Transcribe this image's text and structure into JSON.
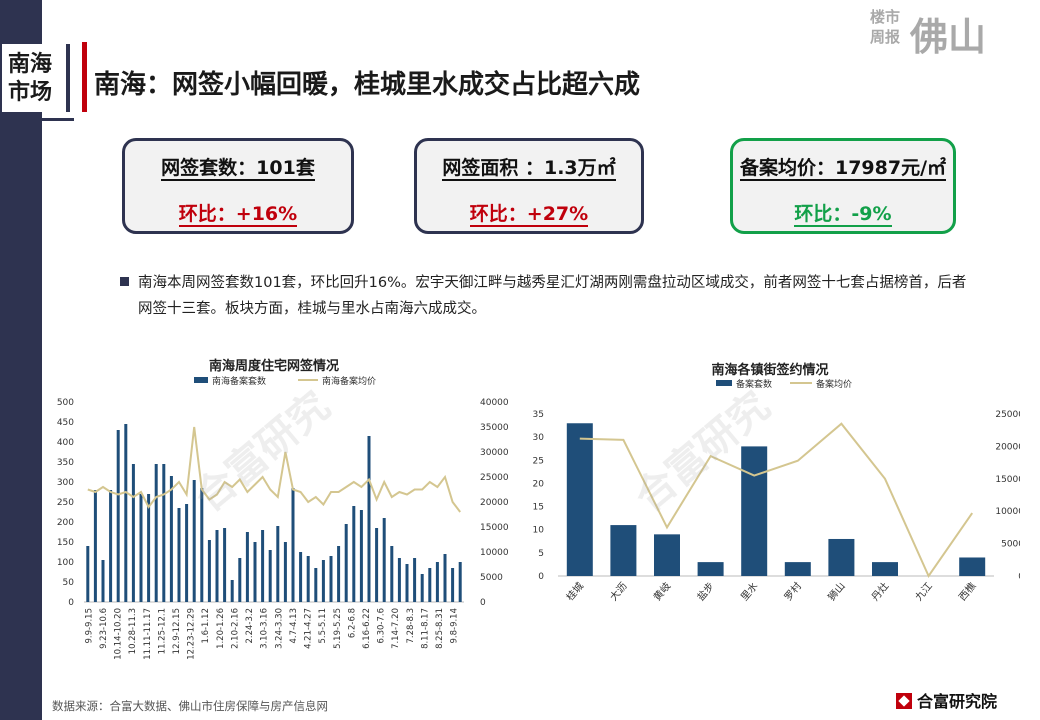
{
  "header": {
    "section_tag_line1": "南海",
    "section_tag_line2": "市场",
    "title": "南海：网签小幅回暖，桂城里水成交占比超六成",
    "brand_small_1": "楼市",
    "brand_small_2": "周报",
    "brand_big": "佛山"
  },
  "kpis": [
    {
      "label": "网签套数：101套",
      "value": "环比：+16%",
      "tone": "up"
    },
    {
      "label": "网签面积 ：1.3万㎡",
      "value": "环比：+27%",
      "tone": "up"
    },
    {
      "label": "备案均价：17987元/㎡",
      "value": "环比：-9%",
      "tone": "down"
    }
  ],
  "paragraph": "南海本周网签套数101套，环比回升16%。宏宇天御江畔与越秀星汇灯湖两刚需盘拉动区域成交，前者网签十七套占据榜首，后者网签十三套。板块方面，桂城与里水占南海六成成交。",
  "watermark": "合富研究",
  "colors": {
    "bar": "#1f4e79",
    "line": "#d4c690",
    "accent_red": "#c0000c",
    "accent_green": "#12a049"
  },
  "chart_data": [
    {
      "type": "bar+line",
      "title": "南海周度住宅网签情况",
      "legend": [
        "南海备案套数",
        "南海备案均价"
      ],
      "x_tick_labels": [
        "9.9-9.15",
        "9.23-10.6",
        "10.14-10.20",
        "10.28-11.3",
        "11.11-11.17",
        "11.25-12.1",
        "12.9-12.15",
        "12.23-12.29",
        "1.6-1.12",
        "1.20-1.26",
        "2.10-2.16",
        "2.24-3.2",
        "3.10-3.16",
        "3.24-3.30",
        "4.7-4.13",
        "4.21-4.27",
        "5.5-5.11",
        "5.19-5.25",
        "6.2-6.8",
        "6.16-6.22",
        "6.30-7.6",
        "7.14-7.20",
        "7.28-8.3",
        "8.11-8.17",
        "8.25-8.31",
        "9.8-9.14"
      ],
      "y_left": {
        "ylim": [
          0,
          500
        ],
        "ticks": [
          0,
          50,
          100,
          150,
          200,
          250,
          300,
          350,
          400,
          450,
          500
        ]
      },
      "y_right": {
        "ylim": [
          0,
          40000
        ],
        "ticks": [
          0,
          5000,
          10000,
          15000,
          20000,
          25000,
          30000,
          35000,
          40000
        ]
      },
      "series": [
        {
          "name": "南海备案套数",
          "kind": "bar",
          "values": [
            140,
            280,
            105,
            280,
            430,
            445,
            345,
            270,
            270,
            345,
            345,
            315,
            235,
            245,
            305,
            285,
            155,
            180,
            185,
            55,
            110,
            175,
            150,
            180,
            130,
            190,
            150,
            285,
            125,
            115,
            85,
            105,
            115,
            140,
            195,
            240,
            230,
            415,
            185,
            210,
            140,
            110,
            95,
            110,
            70,
            85,
            100,
            120,
            85,
            100
          ]
        },
        {
          "name": "南海备案均价",
          "kind": "line",
          "values": [
            22500,
            22000,
            23000,
            22000,
            21500,
            22000,
            21000,
            22000,
            19000,
            21000,
            21500,
            22500,
            24000,
            21500,
            35000,
            22500,
            20500,
            21500,
            24000,
            23000,
            24500,
            22000,
            23500,
            25000,
            22500,
            21000,
            30000,
            22500,
            22000,
            20000,
            21000,
            19500,
            22000,
            22000,
            23000,
            24000,
            23000,
            24500,
            20500,
            24000,
            21000,
            22000,
            21500,
            22500,
            22500,
            24000,
            23000,
            25000,
            20000,
            18000
          ]
        }
      ]
    },
    {
      "type": "bar+line",
      "title": "南海各镇街签约情况",
      "legend": [
        "备案套数",
        "备案均价"
      ],
      "categories": [
        "桂城",
        "大沥",
        "黄岐",
        "盐步",
        "里水",
        "罗村",
        "狮山",
        "丹灶",
        "九江",
        "西樵"
      ],
      "y_left": {
        "ylim": [
          0,
          35
        ],
        "ticks": [
          0,
          5,
          10,
          15,
          20,
          25,
          30,
          35
        ]
      },
      "y_right": {
        "ylim": [
          0,
          25000
        ],
        "ticks": [
          0,
          5000,
          10000,
          15000,
          20000,
          25000
        ]
      },
      "series": [
        {
          "name": "备案套数",
          "kind": "bar",
          "values": [
            33,
            11,
            9,
            3,
            28,
            3,
            8,
            3,
            0,
            4
          ]
        },
        {
          "name": "备案均价",
          "kind": "line",
          "values": [
            21200,
            21000,
            7500,
            18500,
            15500,
            17800,
            23500,
            15000,
            0,
            9700
          ]
        }
      ]
    }
  ],
  "footer": {
    "source": "数据来源：合富大数据、佛山市住房保障与房产信息网",
    "logo": "合富研究院"
  }
}
